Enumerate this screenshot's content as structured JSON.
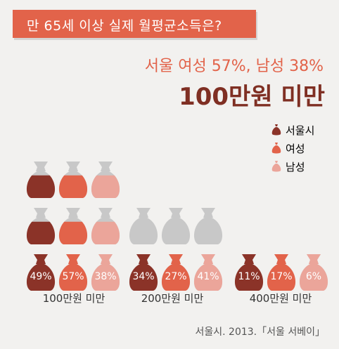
{
  "banner": {
    "title": "만 65세 이상 실제 월평균소득은?"
  },
  "headline": {
    "line1": "서울 여성 57%, 남성 38%",
    "line2": "100만원 미만"
  },
  "legend": [
    {
      "label": "서울시",
      "color": "#8b3328"
    },
    {
      "label": "여성",
      "color": "#e2634a"
    },
    {
      "label": "남성",
      "color": "#eba59a"
    }
  ],
  "source": "서울시. 2013.「서울 서베이」",
  "colors": {
    "empty": "#c8c8c8",
    "accent": "#e2634a"
  },
  "chart_data": {
    "type": "bar",
    "categories": [
      "100만원 미만",
      "200만원 미만",
      "400만원 미만"
    ],
    "series": [
      {
        "name": "서울시",
        "values": [
          49,
          34,
          11
        ],
        "labels": [
          "49%",
          "34%",
          "11%"
        ],
        "color": "#8b3328"
      },
      {
        "name": "여성",
        "values": [
          57,
          27,
          17
        ],
        "labels": [
          "57%",
          "27%",
          "17%"
        ],
        "color": "#e2634a"
      },
      {
        "name": "남성",
        "values": [
          38,
          41,
          6
        ],
        "labels": [
          "38%",
          "41%",
          "6%"
        ],
        "color": "#eba59a"
      }
    ],
    "bags_per_column": [
      3,
      2,
      1
    ],
    "ylabel": "",
    "xlabel": ""
  }
}
